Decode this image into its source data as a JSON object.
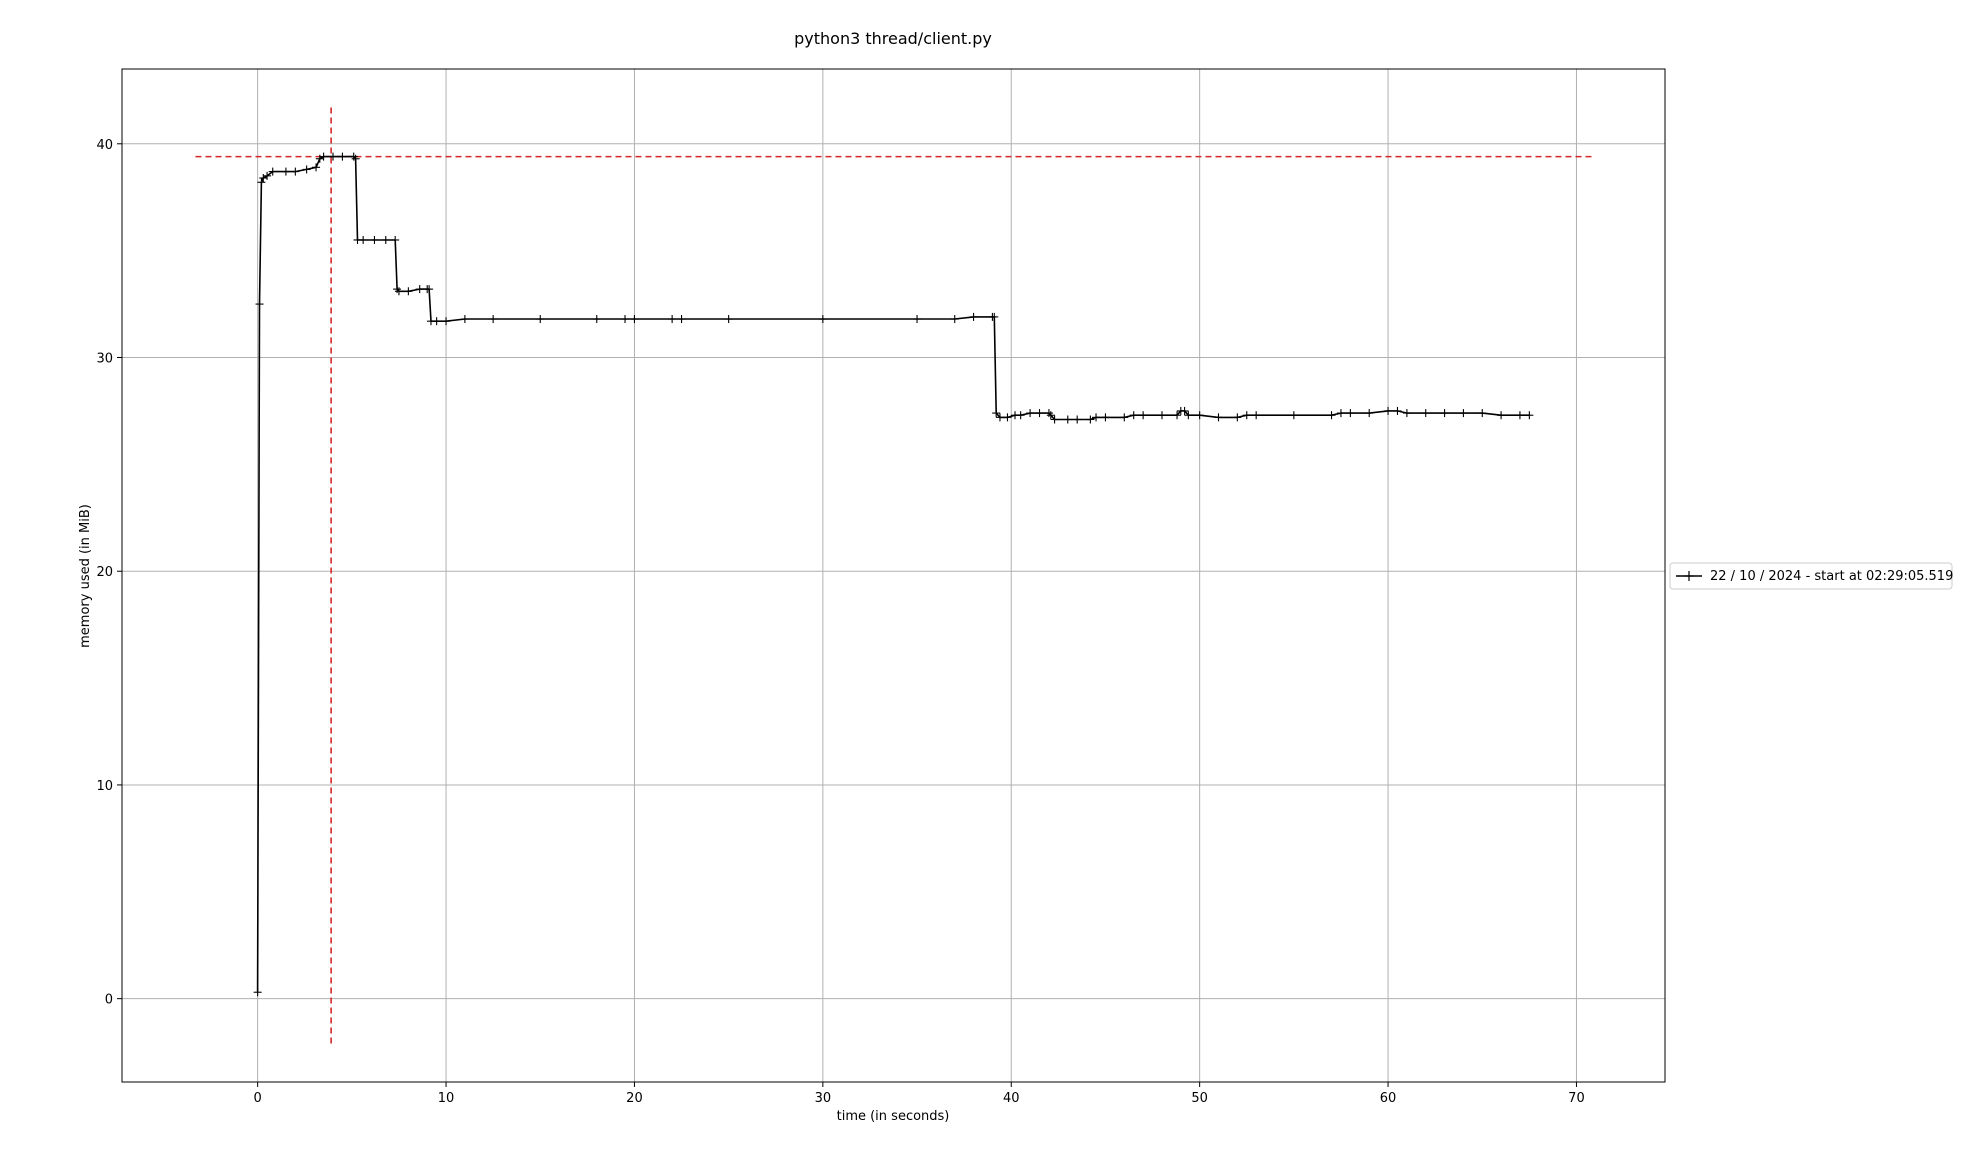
{
  "chart_data": {
    "type": "line",
    "title": "python3 thread/client.py",
    "xlabel": "time (in seconds)",
    "ylabel": "memory used (in MiB)",
    "xlim": [
      -7.2,
      74.7
    ],
    "ylim": [
      -3.9,
      43.5
    ],
    "xticks": [
      0,
      10,
      20,
      30,
      40,
      50,
      60,
      70
    ],
    "yticks": [
      0,
      10,
      20,
      30,
      40
    ],
    "grid": true,
    "legend_position": "center-right",
    "marker": "+",
    "colors": {
      "series": "#000000",
      "peak_lines": "#d62728",
      "grid": "#b0b0b0"
    },
    "series": [
      {
        "name": "22 / 10 / 2024 - start at 02:29:05.519",
        "x": [
          0.0,
          0.1,
          0.2,
          0.3,
          0.5,
          0.8,
          1.5,
          2.0,
          2.6,
          3.1,
          3.3,
          3.5,
          4.0,
          4.5,
          5.1,
          5.2,
          5.3,
          5.6,
          6.2,
          6.8,
          7.3,
          7.4,
          7.5,
          8.0,
          8.6,
          9.0,
          9.1,
          9.2,
          9.5,
          10.0,
          11.0,
          12.5,
          15.0,
          18.0,
          19.5,
          20.0,
          22.0,
          22.5,
          25.0,
          30.0,
          35.0,
          37.0,
          38.0,
          39.0,
          39.1,
          39.2,
          39.4,
          39.8,
          40.2,
          40.5,
          41.0,
          41.5,
          42.0,
          42.1,
          42.3,
          43.0,
          43.5,
          44.2,
          44.5,
          45.0,
          46.0,
          46.5,
          47.0,
          48.0,
          48.8,
          49.0,
          49.2,
          49.4,
          50.0,
          51.0,
          52.0,
          52.5,
          53.0,
          55.0,
          57.0,
          57.5,
          58.0,
          59.0,
          60.0,
          60.5,
          61.0,
          62.0,
          63.0,
          64.0,
          65.0,
          66.0,
          67.0,
          67.5
        ],
        "y": [
          0.3,
          32.5,
          38.2,
          38.4,
          38.5,
          38.7,
          38.7,
          38.7,
          38.8,
          38.9,
          39.3,
          39.4,
          39.4,
          39.4,
          39.4,
          39.3,
          35.5,
          35.5,
          35.5,
          35.5,
          35.5,
          33.2,
          33.1,
          33.1,
          33.2,
          33.2,
          33.2,
          31.7,
          31.7,
          31.7,
          31.8,
          31.8,
          31.8,
          31.8,
          31.8,
          31.8,
          31.8,
          31.8,
          31.8,
          31.8,
          31.8,
          31.8,
          31.9,
          31.9,
          31.9,
          27.4,
          27.2,
          27.2,
          27.3,
          27.3,
          27.4,
          27.4,
          27.4,
          27.3,
          27.1,
          27.1,
          27.1,
          27.1,
          27.2,
          27.2,
          27.2,
          27.3,
          27.3,
          27.3,
          27.3,
          27.5,
          27.5,
          27.3,
          27.3,
          27.2,
          27.2,
          27.3,
          27.3,
          27.3,
          27.3,
          27.4,
          27.4,
          27.4,
          27.5,
          27.5,
          27.4,
          27.4,
          27.4,
          27.4,
          27.4,
          27.3,
          27.3,
          27.3
        ]
      }
    ],
    "peak_markers": {
      "x": 3.9,
      "y": 39.4
    }
  }
}
